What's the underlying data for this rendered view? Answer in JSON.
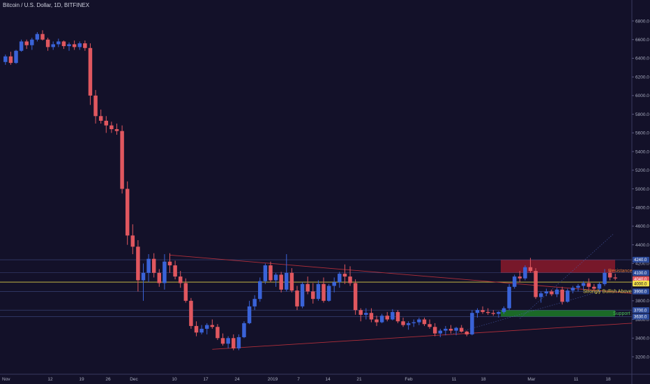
{
  "header": {
    "title": "Bitcoin / U.S. Dollar, 1D, BITFINEX"
  },
  "colors": {
    "background": "#131129",
    "up": "#3a63d8",
    "down": "#e0575f",
    "resistance_zone": "#8a1a2a",
    "support_zone": "#1d7a27",
    "yellow_line": "#e8d84a",
    "trend_line": "#c2323c",
    "grid": "#2a2950",
    "axis_text": "#a9adc0"
  },
  "chart_data": {
    "type": "candlestick",
    "title": "Bitcoin / U.S. Dollar, 1D, BITFINEX",
    "ylim": [
      3050,
      6900
    ],
    "x_tick_labels": [
      "Nov",
      "12",
      "19",
      "26",
      "Dec",
      "10",
      "17",
      "24",
      "2019",
      "7",
      "14",
      "21",
      "Feb",
      "11",
      "18",
      "Mar",
      "11",
      "18"
    ],
    "y_tick_labels": [
      "6800.0",
      "6600.0",
      "6400.0",
      "6200.0",
      "6000.0",
      "5800.0",
      "5600.0",
      "5400.0",
      "5200.0",
      "5000.0",
      "4800.0",
      "4600.0",
      "4400.0",
      "4200.0",
      "4000.0",
      "3800.0",
      "3600.0",
      "3400.0",
      "3200.0"
    ],
    "y_ticks": [
      6800,
      6600,
      6400,
      6200,
      6000,
      5800,
      5600,
      5400,
      5200,
      5000,
      4800,
      4600,
      4400,
      4200,
      4000,
      3800,
      3600,
      3400,
      3200
    ],
    "price_tags": [
      {
        "label": "4240.0",
        "value": 4240,
        "kind": "level"
      },
      {
        "label": "4100.0",
        "value": 4100,
        "kind": "level"
      },
      {
        "label": "4040.0",
        "value": 4040,
        "kind": "current"
      },
      {
        "label": "4000.0",
        "value": 4000,
        "kind": "yellow"
      },
      {
        "label": "3900.0",
        "value": 3900,
        "kind": "level"
      },
      {
        "label": "3700.0",
        "value": 3700,
        "kind": "level"
      },
      {
        "label": "3630.0",
        "value": 3630,
        "kind": "level"
      }
    ],
    "annotations": [
      {
        "text": "Resistance",
        "color": "#e87a3a"
      },
      {
        "text": "Strongly Bullish Above",
        "color": "#e8d84a"
      },
      {
        "text": "Support",
        "color": "#4cc35a"
      }
    ],
    "zones": [
      {
        "name": "resistance",
        "from": 4100,
        "to": 4240
      },
      {
        "name": "support",
        "from": 3630,
        "to": 3700
      }
    ],
    "horizontal_levels": [
      4240,
      4100,
      4000,
      3900,
      3700,
      3630
    ],
    "candles": [
      [
        6360,
        6440,
        6330,
        6420
      ],
      [
        6420,
        6470,
        6330,
        6350
      ],
      [
        6350,
        6490,
        6340,
        6480
      ],
      [
        6480,
        6600,
        6470,
        6580
      ],
      [
        6580,
        6600,
        6500,
        6540
      ],
      [
        6540,
        6620,
        6490,
        6600
      ],
      [
        6600,
        6680,
        6580,
        6660
      ],
      [
        6660,
        6700,
        6590,
        6600
      ],
      [
        6600,
        6620,
        6480,
        6520
      ],
      [
        6520,
        6580,
        6490,
        6550
      ],
      [
        6550,
        6610,
        6520,
        6580
      ],
      [
        6580,
        6590,
        6500,
        6530
      ],
      [
        6530,
        6570,
        6480,
        6550
      ],
      [
        6550,
        6590,
        6490,
        6520
      ],
      [
        6520,
        6580,
        6490,
        6560
      ],
      [
        6560,
        6590,
        6480,
        6510
      ],
      [
        6510,
        6560,
        5900,
        6000
      ],
      [
        6000,
        6060,
        5700,
        5780
      ],
      [
        5780,
        5850,
        5700,
        5730
      ],
      [
        5730,
        5780,
        5600,
        5680
      ],
      [
        5680,
        5720,
        5600,
        5640
      ],
      [
        5640,
        5700,
        5580,
        5620
      ],
      [
        5620,
        5680,
        4950,
        5000
      ],
      [
        5000,
        5080,
        4400,
        4500
      ],
      [
        4500,
        4620,
        4300,
        4380
      ],
      [
        4380,
        4450,
        3900,
        4020
      ],
      [
        4020,
        4200,
        3800,
        4100
      ],
      [
        4100,
        4300,
        4000,
        4250
      ],
      [
        4250,
        4310,
        4050,
        4100
      ],
      [
        4100,
        4140,
        3950,
        3990
      ],
      [
        3990,
        4300,
        3920,
        4220
      ],
      [
        4220,
        4310,
        4100,
        4180
      ],
      [
        4180,
        4230,
        4030,
        4060
      ],
      [
        4060,
        4120,
        3940,
        3990
      ],
      [
        3990,
        4040,
        3780,
        3800
      ],
      [
        3800,
        3830,
        3500,
        3530
      ],
      [
        3530,
        3580,
        3420,
        3460
      ],
      [
        3460,
        3540,
        3440,
        3500
      ],
      [
        3500,
        3560,
        3440,
        3540
      ],
      [
        3540,
        3600,
        3500,
        3520
      ],
      [
        3520,
        3550,
        3380,
        3400
      ],
      [
        3400,
        3450,
        3320,
        3340
      ],
      [
        3340,
        3420,
        3290,
        3400
      ],
      [
        3400,
        3440,
        3270,
        3290
      ],
      [
        3290,
        3440,
        3270,
        3410
      ],
      [
        3410,
        3580,
        3400,
        3560
      ],
      [
        3560,
        3800,
        3550,
        3740
      ],
      [
        3740,
        3860,
        3700,
        3820
      ],
      [
        3820,
        4050,
        3790,
        4010
      ],
      [
        4010,
        4200,
        3980,
        4180
      ],
      [
        4180,
        4220,
        4000,
        4020
      ],
      [
        4020,
        4100,
        3950,
        4080
      ],
      [
        4080,
        4110,
        3890,
        3920
      ],
      [
        3920,
        4300,
        3900,
        4100
      ],
      [
        4100,
        4150,
        3890,
        3910
      ],
      [
        3910,
        3960,
        3700,
        3740
      ],
      [
        3740,
        4000,
        3720,
        3980
      ],
      [
        3980,
        4060,
        3870,
        3900
      ],
      [
        3900,
        3990,
        3770,
        3820
      ],
      [
        3820,
        4020,
        3800,
        3980
      ],
      [
        3980,
        4050,
        3780,
        3800
      ],
      [
        3800,
        3980,
        3790,
        3960
      ],
      [
        3960,
        4050,
        3890,
        4000
      ],
      [
        4000,
        4110,
        3940,
        4090
      ],
      [
        4090,
        4190,
        3980,
        4060
      ],
      [
        4060,
        4170,
        3960,
        3990
      ],
      [
        3990,
        4030,
        3650,
        3700
      ],
      [
        3700,
        3720,
        3580,
        3650
      ],
      [
        3650,
        3720,
        3600,
        3670
      ],
      [
        3670,
        3720,
        3570,
        3600
      ],
      [
        3600,
        3640,
        3530,
        3570
      ],
      [
        3570,
        3660,
        3560,
        3640
      ],
      [
        3640,
        3680,
        3580,
        3600
      ],
      [
        3600,
        3710,
        3590,
        3680
      ],
      [
        3680,
        3700,
        3560,
        3580
      ],
      [
        3580,
        3620,
        3520,
        3540
      ],
      [
        3540,
        3580,
        3490,
        3560
      ],
      [
        3560,
        3600,
        3520,
        3570
      ],
      [
        3570,
        3620,
        3540,
        3600
      ],
      [
        3600,
        3620,
        3530,
        3550
      ],
      [
        3550,
        3600,
        3500,
        3520
      ],
      [
        3520,
        3560,
        3420,
        3450
      ],
      [
        3450,
        3500,
        3410,
        3480
      ],
      [
        3480,
        3530,
        3430,
        3500
      ],
      [
        3500,
        3540,
        3450,
        3480
      ],
      [
        3480,
        3520,
        3430,
        3510
      ],
      [
        3510,
        3540,
        3460,
        3470
      ],
      [
        3470,
        3480,
        3420,
        3440
      ],
      [
        3440,
        3700,
        3430,
        3670
      ],
      [
        3670,
        3720,
        3620,
        3700
      ],
      [
        3700,
        3740,
        3660,
        3680
      ],
      [
        3680,
        3720,
        3650,
        3670
      ],
      [
        3670,
        3700,
        3640,
        3660
      ],
      [
        3660,
        3690,
        3620,
        3680
      ],
      [
        3680,
        3740,
        3660,
        3720
      ],
      [
        3720,
        3980,
        3700,
        3950
      ],
      [
        3950,
        4080,
        3930,
        4060
      ],
      [
        4060,
        4120,
        4000,
        4040
      ],
      [
        4040,
        4180,
        4020,
        4160
      ],
      [
        4160,
        4260,
        4100,
        4120
      ],
      [
        4120,
        4150,
        3820,
        3840
      ],
      [
        3840,
        3900,
        3780,
        3880
      ],
      [
        3880,
        3930,
        3850,
        3900
      ],
      [
        3900,
        3920,
        3850,
        3870
      ],
      [
        3870,
        3940,
        3840,
        3920
      ],
      [
        3920,
        3950,
        3760,
        3790
      ],
      [
        3790,
        3930,
        3780,
        3910
      ],
      [
        3910,
        3960,
        3880,
        3940
      ],
      [
        3940,
        3980,
        3900,
        3960
      ],
      [
        3960,
        4010,
        3920,
        3990
      ],
      [
        3990,
        4040,
        3920,
        3950
      ],
      [
        3950,
        3980,
        3900,
        3930
      ],
      [
        3930,
        4000,
        3900,
        3980
      ],
      [
        3980,
        4140,
        3960,
        4100
      ],
      [
        4100,
        4120,
        4020,
        4050
      ],
      [
        4050,
        4090,
        4020,
        4040
      ]
    ]
  }
}
